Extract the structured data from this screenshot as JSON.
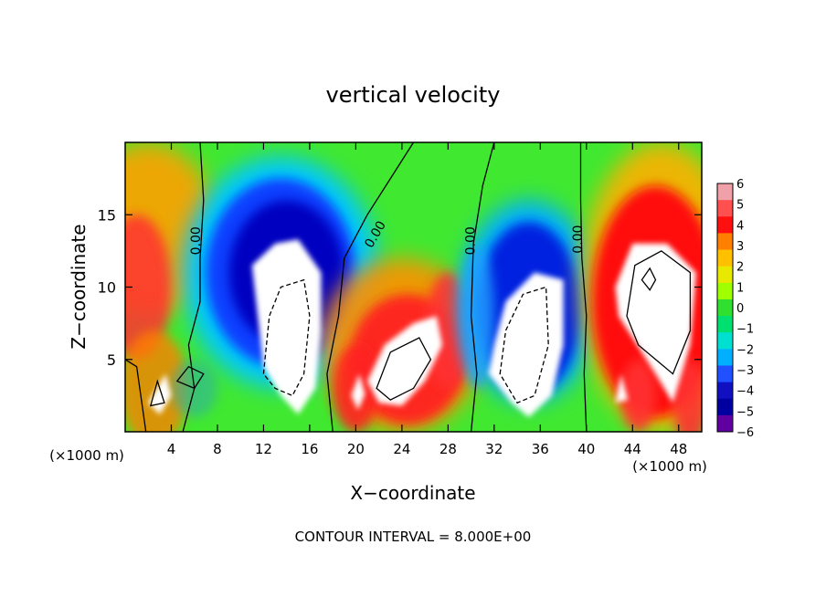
{
  "chart_data": {
    "type": "heatmap",
    "title": "vertical velocity",
    "xlabel": "X−coordinate",
    "ylabel": "Z−coordinate",
    "x_unit_label": "(×1000 m)",
    "xlim": [
      0,
      50000
    ],
    "ylim": [
      0,
      20000
    ],
    "x_ticks": [
      4000,
      8000,
      12000,
      16000,
      20000,
      24000,
      28000,
      32000,
      36000,
      40000,
      44000,
      48000
    ],
    "x_tick_labels": [
      "4",
      "8",
      "12",
      "16",
      "20",
      "24",
      "28",
      "32",
      "36",
      "40",
      "44",
      "48"
    ],
    "y_ticks": [
      5000,
      10000,
      15000
    ],
    "y_tick_labels": [
      "5",
      "10",
      "15"
    ],
    "footer": "CONTOUR INTERVAL = 8.000E+00",
    "zero_contour_label": "0.00",
    "colorbar": {
      "labels": [
        "6",
        "5",
        "4",
        "3",
        "2",
        "1",
        "0",
        "−1",
        "−2",
        "−3",
        "−4",
        "−5",
        "−6"
      ],
      "range": [
        -6,
        6
      ],
      "colors": [
        "#f0a0a8",
        "#ff5050",
        "#ff1010",
        "#ff8000",
        "#ffc000",
        "#e8e800",
        "#a0ff00",
        "#30e030",
        "#00e070",
        "#00e0d0",
        "#00b0ff",
        "#2050ff",
        "#1010c0",
        "#0000a0",
        "#6000a0"
      ]
    },
    "features": [
      {
        "kind": "updraft_core",
        "x": 14500,
        "z": 9000
      },
      {
        "kind": "updraft_core",
        "x": 35000,
        "z": 7500
      },
      {
        "kind": "updraft_core",
        "x": 46000,
        "z": 9000
      },
      {
        "kind": "downdraft",
        "x": 14000,
        "z": 12000
      },
      {
        "kind": "downdraft",
        "x": 34500,
        "z": 9000
      },
      {
        "kind": "updraft",
        "x": 25000,
        "z": 5000
      },
      {
        "kind": "updraft",
        "x": 3000,
        "z": 2500
      }
    ]
  }
}
